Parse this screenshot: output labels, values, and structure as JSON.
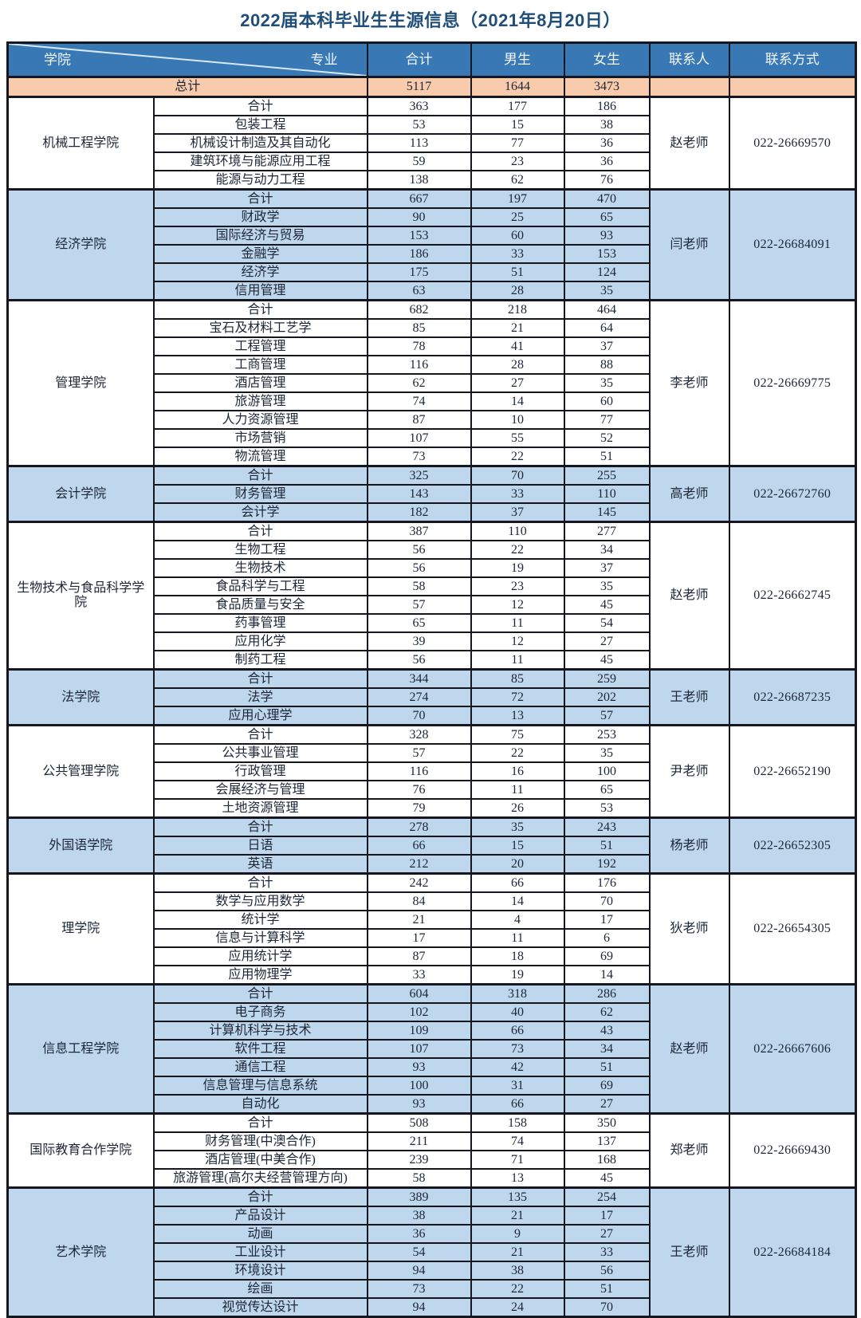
{
  "title": "2022届本科毕业生生源信息（2021年8月20日）",
  "headers": {
    "college": "学院",
    "major": "专业",
    "total": "合计",
    "male": "男生",
    "female": "女生",
    "contact": "联系人",
    "phone": "联系方式"
  },
  "grand_total": {
    "label": "总计",
    "total": "5117",
    "male": "1644",
    "female": "3473"
  },
  "colleges": [
    {
      "name": "机械工程学院",
      "contact": "赵老师",
      "phone": "022-26669570",
      "shade": "white",
      "majors": [
        {
          "major": "合计",
          "total": "363",
          "male": "177",
          "female": "186"
        },
        {
          "major": "包装工程",
          "total": "53",
          "male": "15",
          "female": "38"
        },
        {
          "major": "机械设计制造及其自动化",
          "total": "113",
          "male": "77",
          "female": "36"
        },
        {
          "major": "建筑环境与能源应用工程",
          "total": "59",
          "male": "23",
          "female": "36"
        },
        {
          "major": "能源与动力工程",
          "total": "138",
          "male": "62",
          "female": "76"
        }
      ]
    },
    {
      "name": "经济学院",
      "contact": "闫老师",
      "phone": "022-26684091",
      "shade": "blue",
      "majors": [
        {
          "major": "合计",
          "total": "667",
          "male": "197",
          "female": "470"
        },
        {
          "major": "财政学",
          "total": "90",
          "male": "25",
          "female": "65"
        },
        {
          "major": "国际经济与贸易",
          "total": "153",
          "male": "60",
          "female": "93"
        },
        {
          "major": "金融学",
          "total": "186",
          "male": "33",
          "female": "153"
        },
        {
          "major": "经济学",
          "total": "175",
          "male": "51",
          "female": "124"
        },
        {
          "major": "信用管理",
          "total": "63",
          "male": "28",
          "female": "35"
        }
      ]
    },
    {
      "name": "管理学院",
      "contact": "李老师",
      "phone": "022-26669775",
      "shade": "white",
      "majors": [
        {
          "major": "合计",
          "total": "682",
          "male": "218",
          "female": "464"
        },
        {
          "major": "宝石及材料工艺学",
          "total": "85",
          "male": "21",
          "female": "64"
        },
        {
          "major": "工程管理",
          "total": "78",
          "male": "41",
          "female": "37"
        },
        {
          "major": "工商管理",
          "total": "116",
          "male": "28",
          "female": "88"
        },
        {
          "major": "酒店管理",
          "total": "62",
          "male": "27",
          "female": "35"
        },
        {
          "major": "旅游管理",
          "total": "74",
          "male": "14",
          "female": "60"
        },
        {
          "major": "人力资源管理",
          "total": "87",
          "male": "10",
          "female": "77"
        },
        {
          "major": "市场营销",
          "total": "107",
          "male": "55",
          "female": "52"
        },
        {
          "major": "物流管理",
          "total": "73",
          "male": "22",
          "female": "51"
        }
      ]
    },
    {
      "name": "会计学院",
      "contact": "高老师",
      "phone": "022-26672760",
      "shade": "blue",
      "majors": [
        {
          "major": "合计",
          "total": "325",
          "male": "70",
          "female": "255"
        },
        {
          "major": "财务管理",
          "total": "143",
          "male": "33",
          "female": "110"
        },
        {
          "major": "会计学",
          "total": "182",
          "male": "37",
          "female": "145"
        }
      ]
    },
    {
      "name": "生物技术与食品科学学院",
      "contact": "赵老师",
      "phone": "022-26662745",
      "shade": "white",
      "majors": [
        {
          "major": "合计",
          "total": "387",
          "male": "110",
          "female": "277"
        },
        {
          "major": "生物工程",
          "total": "56",
          "male": "22",
          "female": "34"
        },
        {
          "major": "生物技术",
          "total": "56",
          "male": "19",
          "female": "37"
        },
        {
          "major": "食品科学与工程",
          "total": "58",
          "male": "23",
          "female": "35"
        },
        {
          "major": "食品质量与安全",
          "total": "57",
          "male": "12",
          "female": "45"
        },
        {
          "major": "药事管理",
          "total": "65",
          "male": "11",
          "female": "54"
        },
        {
          "major": "应用化学",
          "total": "39",
          "male": "12",
          "female": "27"
        },
        {
          "major": "制药工程",
          "total": "56",
          "male": "11",
          "female": "45"
        }
      ]
    },
    {
      "name": "法学院",
      "contact": "王老师",
      "phone": "022-26687235",
      "shade": "blue",
      "majors": [
        {
          "major": "合计",
          "total": "344",
          "male": "85",
          "female": "259"
        },
        {
          "major": "法学",
          "total": "274",
          "male": "72",
          "female": "202"
        },
        {
          "major": "应用心理学",
          "total": "70",
          "male": "13",
          "female": "57"
        }
      ]
    },
    {
      "name": "公共管理学院",
      "contact": "尹老师",
      "phone": "022-26652190",
      "shade": "white",
      "majors": [
        {
          "major": "合计",
          "total": "328",
          "male": "75",
          "female": "253"
        },
        {
          "major": "公共事业管理",
          "total": "57",
          "male": "22",
          "female": "35"
        },
        {
          "major": "行政管理",
          "total": "116",
          "male": "16",
          "female": "100"
        },
        {
          "major": "会展经济与管理",
          "total": "76",
          "male": "11",
          "female": "65"
        },
        {
          "major": "土地资源管理",
          "total": "79",
          "male": "26",
          "female": "53"
        }
      ]
    },
    {
      "name": "外国语学院",
      "contact": "杨老师",
      "phone": "022-26652305",
      "shade": "blue",
      "majors": [
        {
          "major": "合计",
          "total": "278",
          "male": "35",
          "female": "243"
        },
        {
          "major": "日语",
          "total": "66",
          "male": "15",
          "female": "51"
        },
        {
          "major": "英语",
          "total": "212",
          "male": "20",
          "female": "192"
        }
      ]
    },
    {
      "name": "理学院",
      "contact": "狄老师",
      "phone": "022-26654305",
      "shade": "white",
      "majors": [
        {
          "major": "合计",
          "total": "242",
          "male": "66",
          "female": "176"
        },
        {
          "major": "数学与应用数学",
          "total": "84",
          "male": "14",
          "female": "70"
        },
        {
          "major": "统计学",
          "total": "21",
          "male": "4",
          "female": "17"
        },
        {
          "major": "信息与计算科学",
          "total": "17",
          "male": "11",
          "female": "6"
        },
        {
          "major": "应用统计学",
          "total": "87",
          "male": "18",
          "female": "69"
        },
        {
          "major": "应用物理学",
          "total": "33",
          "male": "19",
          "female": "14"
        }
      ]
    },
    {
      "name": "信息工程学院",
      "contact": "赵老师",
      "phone": "022-26667606",
      "shade": "blue",
      "majors": [
        {
          "major": "合计",
          "total": "604",
          "male": "318",
          "female": "286"
        },
        {
          "major": "电子商务",
          "total": "102",
          "male": "40",
          "female": "62"
        },
        {
          "major": "计算机科学与技术",
          "total": "109",
          "male": "66",
          "female": "43"
        },
        {
          "major": "软件工程",
          "total": "107",
          "male": "73",
          "female": "34"
        },
        {
          "major": "通信工程",
          "total": "93",
          "male": "42",
          "female": "51"
        },
        {
          "major": "信息管理与信息系统",
          "total": "100",
          "male": "31",
          "female": "69"
        },
        {
          "major": "自动化",
          "total": "93",
          "male": "66",
          "female": "27"
        }
      ]
    },
    {
      "name": "国际教育合作学院",
      "contact": "郑老师",
      "phone": "022-26669430",
      "shade": "white",
      "majors": [
        {
          "major": "合计",
          "total": "508",
          "male": "158",
          "female": "350"
        },
        {
          "major": "财务管理(中澳合作)",
          "total": "211",
          "male": "74",
          "female": "137"
        },
        {
          "major": "酒店管理(中美合作)",
          "total": "239",
          "male": "71",
          "female": "168"
        },
        {
          "major": "旅游管理(高尔夫经营管理方向)",
          "total": "58",
          "male": "13",
          "female": "45"
        }
      ]
    },
    {
      "name": "艺术学院",
      "contact": "王老师",
      "phone": "022-26684184",
      "shade": "blue",
      "majors": [
        {
          "major": "合计",
          "total": "389",
          "male": "135",
          "female": "254"
        },
        {
          "major": "产品设计",
          "total": "38",
          "male": "21",
          "female": "17"
        },
        {
          "major": "动画",
          "total": "36",
          "male": "9",
          "female": "27"
        },
        {
          "major": "工业设计",
          "total": "54",
          "male": "21",
          "female": "33"
        },
        {
          "major": "环境设计",
          "total": "94",
          "male": "38",
          "female": "56"
        },
        {
          "major": "绘画",
          "total": "73",
          "male": "22",
          "female": "51"
        },
        {
          "major": "视觉传达设计",
          "total": "94",
          "male": "24",
          "female": "70"
        }
      ]
    }
  ],
  "colors": {
    "header_bg": "#3878B4",
    "header_text": "#F2F7FC",
    "grand_total_bg": "#F8CBAD",
    "block_blue_bg": "#BFD7ED",
    "block_white_bg": "#FFFFFF",
    "border": "#16161E",
    "title_text": "#1F4E79",
    "diagonal_line": "#D9E8F7"
  }
}
